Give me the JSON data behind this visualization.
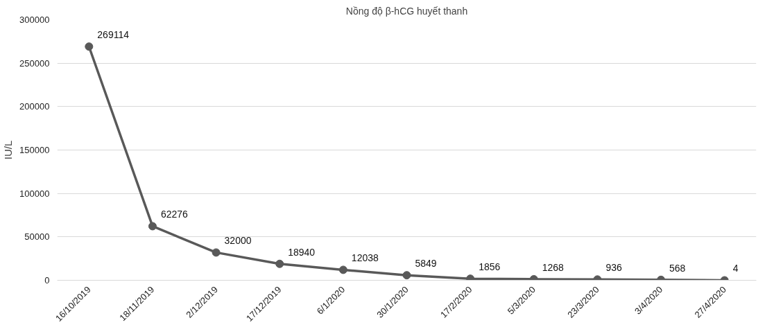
{
  "chart_data": {
    "type": "line",
    "title": "Nồng độ β-hCG huyết thanh",
    "ylabel": "IU/L",
    "categories": [
      "16/10/2019",
      "18/11/2019",
      "2/12/2019",
      "17/12/2019",
      "6/1/2020",
      "30/1/2020",
      "17/2/2020",
      "5/3/2020",
      "23/3/2020",
      "3/4/2020",
      "27/4/2020"
    ],
    "series": [
      {
        "color": "#595959",
        "values": [
          269114,
          62276,
          32000,
          18940,
          12038,
          5849,
          1856,
          1268,
          936,
          568,
          4
        ]
      }
    ],
    "ylim": [
      0,
      300000
    ],
    "yticks": [
      0,
      50000,
      100000,
      150000,
      200000,
      250000,
      300000
    ],
    "grid": "y",
    "marker": "circle",
    "line_style": "solid",
    "data_labels": true
  }
}
